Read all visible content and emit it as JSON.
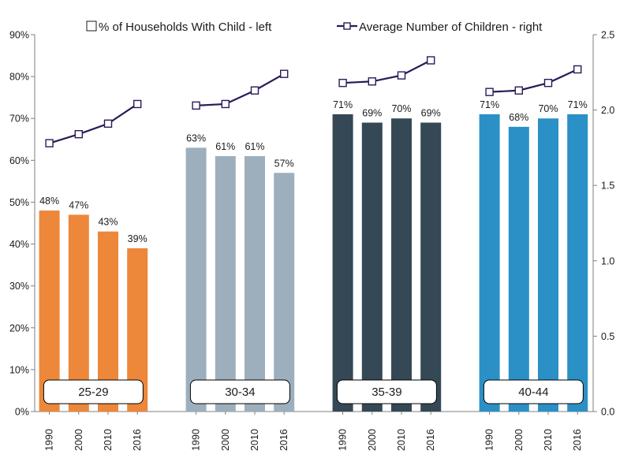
{
  "chart_data": {
    "type": "bar+line",
    "legend": {
      "bar_label": "% of Households With Child - left",
      "line_label": "Average Number of Children - right"
    },
    "left_axis": {
      "ylim": [
        0,
        90
      ],
      "step": 10,
      "ticks": [
        "0%",
        "10%",
        "20%",
        "30%",
        "40%",
        "50%",
        "60%",
        "70%",
        "80%",
        "90%"
      ]
    },
    "right_axis": {
      "ylim": [
        0,
        2.5
      ],
      "step": 0.5,
      "ticks": [
        "0.0",
        "0.5",
        "1.0",
        "1.5",
        "2.0",
        "2.5"
      ]
    },
    "groups": [
      {
        "name": "25-29",
        "color": "#ed873a",
        "years": [
          "1990",
          "2000",
          "2010",
          "2016"
        ],
        "values": [
          48,
          47,
          43,
          39
        ],
        "labels": [
          "48%",
          "47%",
          "43%",
          "39%"
        ],
        "avg_children": [
          1.78,
          1.84,
          1.91,
          2.04
        ]
      },
      {
        "name": "30-34",
        "color": "#9dafbd",
        "years": [
          "1990",
          "2000",
          "2010",
          "2016"
        ],
        "values": [
          63,
          61,
          61,
          57
        ],
        "labels": [
          "63%",
          "61%",
          "61%",
          "57%"
        ],
        "avg_children": [
          2.03,
          2.04,
          2.13,
          2.24
        ]
      },
      {
        "name": "35-39",
        "color": "#354856",
        "years": [
          "1990",
          "2000",
          "2010",
          "2016"
        ],
        "values": [
          71,
          69,
          70,
          69
        ],
        "labels": [
          "71%",
          "69%",
          "70%",
          "69%"
        ],
        "avg_children": [
          2.18,
          2.19,
          2.23,
          2.33
        ]
      },
      {
        "name": "40-44",
        "color": "#2b90c5",
        "years": [
          "1990",
          "2000",
          "2010",
          "2016"
        ],
        "values": [
          71,
          68,
          70,
          71
        ],
        "labels": [
          "71%",
          "68%",
          "70%",
          "71%"
        ],
        "avg_children": [
          2.12,
          2.13,
          2.18,
          2.27
        ]
      }
    ]
  }
}
